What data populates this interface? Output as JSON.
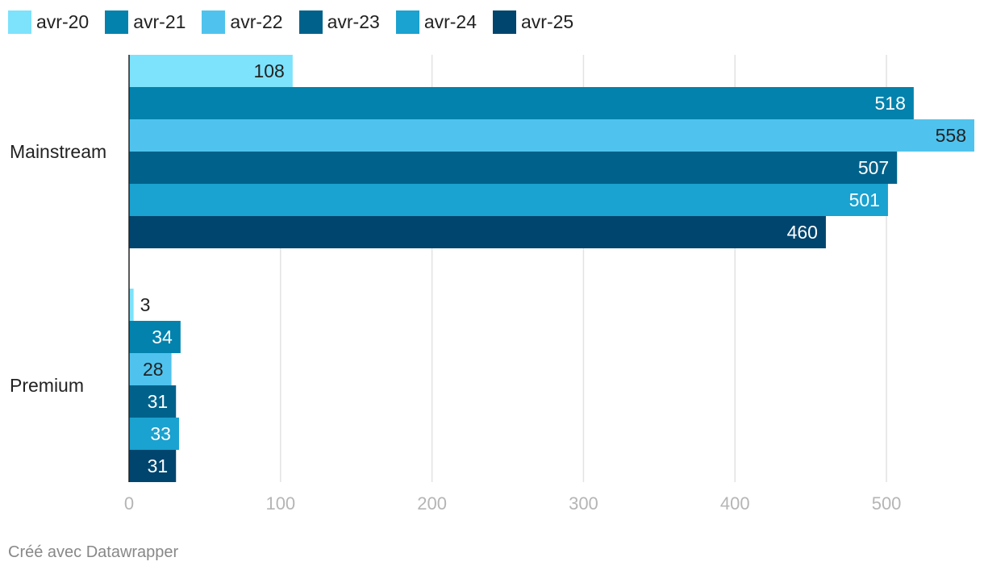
{
  "chart_data": {
    "type": "bar",
    "orientation": "horizontal",
    "categories": [
      "Mainstream",
      "Premium"
    ],
    "series": [
      {
        "name": "avr-20",
        "color": "#7de2fc",
        "values": [
          108,
          3
        ]
      },
      {
        "name": "avr-21",
        "color": "#0282ad",
        "values": [
          518,
          34
        ]
      },
      {
        "name": "avr-22",
        "color": "#4fc3ee",
        "values": [
          558,
          28
        ]
      },
      {
        "name": "avr-23",
        "color": "#00628b",
        "values": [
          507,
          31
        ]
      },
      {
        "name": "avr-24",
        "color": "#1aa2d0",
        "values": [
          501,
          33
        ]
      },
      {
        "name": "avr-25",
        "color": "#00456e",
        "values": [
          460,
          31
        ]
      }
    ],
    "xlim": [
      0,
      558
    ],
    "xticks": [
      0,
      100,
      200,
      300,
      400,
      500
    ],
    "grid": true,
    "legend_position": "top-left",
    "title": "",
    "xlabel": "",
    "ylabel": ""
  },
  "credit": "Créé avec Datawrapper"
}
